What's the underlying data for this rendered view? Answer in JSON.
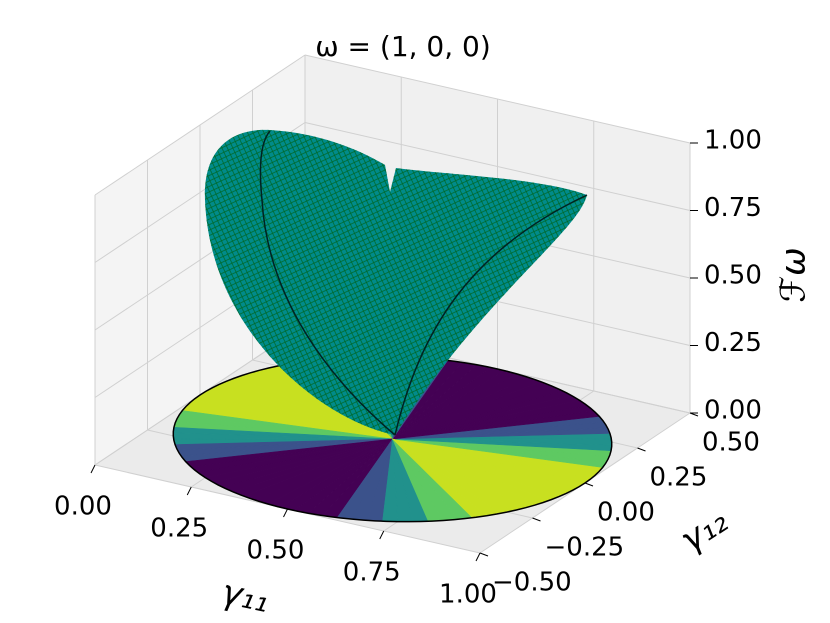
{
  "chart_data": {
    "type": "surface3d",
    "title": "ω = (1, 0, 0)",
    "xlabel": "γ₁₁",
    "ylabel": "γ₁₂",
    "zlabel": "ℱω",
    "xlim": [
      0,
      1
    ],
    "ylim": [
      -0.5,
      0.5
    ],
    "zlim": [
      0,
      1
    ],
    "xticks": [
      {
        "value": 0,
        "label": "0.00"
      },
      {
        "value": 0.25,
        "label": "0.25"
      },
      {
        "value": 0.5,
        "label": "0.50"
      },
      {
        "value": 0.75,
        "label": "0.75"
      },
      {
        "value": 1,
        "label": "1.00"
      }
    ],
    "yticks": [
      {
        "value": -0.5,
        "label": "−0.50"
      },
      {
        "value": -0.25,
        "label": "−0.25"
      },
      {
        "value": 0,
        "label": "0.00"
      },
      {
        "value": 0.25,
        "label": "0.25"
      },
      {
        "value": 0.5,
        "label": "0.50"
      }
    ],
    "zticks": [
      {
        "value": 0,
        "label": "0.00"
      },
      {
        "value": 0.25,
        "label": "0.25"
      },
      {
        "value": 0.5,
        "label": "0.50"
      },
      {
        "value": 0.75,
        "label": "0.75"
      },
      {
        "value": 1,
        "label": "1.00"
      }
    ],
    "surface_color": "#008b8b",
    "grid": true
  }
}
